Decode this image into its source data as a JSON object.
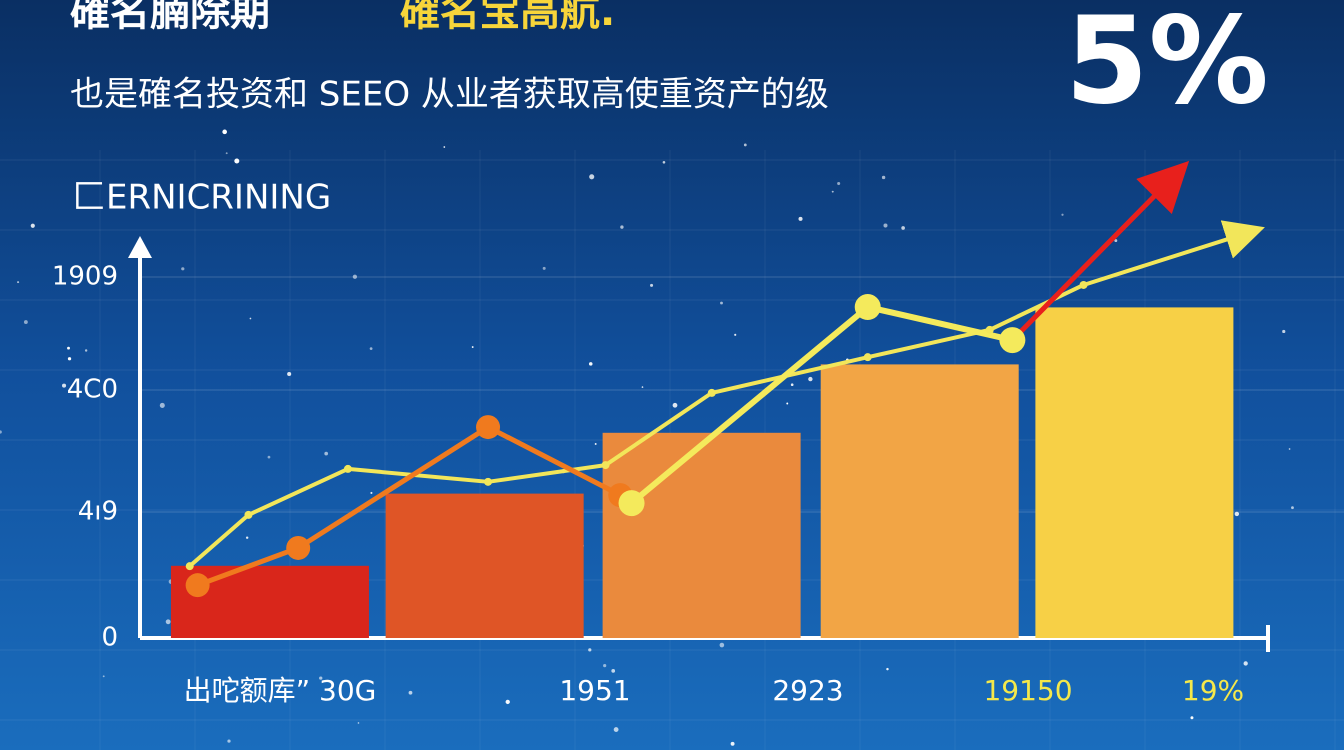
{
  "chart_data": {
    "type": "combo",
    "title": "確名腩除期",
    "title_highlight": "確名宝高航.",
    "subtitle": "也是確名投资和 SEEO 从业者获取高使重资产的级",
    "big_number": "5%",
    "axis_title": "匚ERNICRINING",
    "y_axis_labels": [
      "1909",
      "4C0",
      "4ı9",
      "0"
    ],
    "x_axis_labels": [
      "出咜额库” 30G",
      "1951",
      "2923",
      "19150",
      "19%"
    ],
    "xlim": [
      0,
      100
    ],
    "ylim": [
      0,
      125
    ],
    "bars": {
      "x": [
        11.5,
        30.5,
        49.7,
        69,
        88
      ],
      "values": [
        19,
        38,
        54,
        72,
        87
      ],
      "colors": [
        "#d9261b",
        "#df5526",
        "#ea8a3d",
        "#f2a545",
        "#f7d046"
      ]
    },
    "series": [
      {
        "color": "#f2e65a",
        "x": [
          4.4,
          9.6,
          18.4,
          30.8,
          41.2,
          50.6,
          64.4,
          75.2,
          83.5,
          98.2
        ],
        "values": [
          18.9,
          32.4,
          44.5,
          41.1,
          45.5,
          64.5,
          73.9,
          81.1,
          92.9,
          106.8
        ]
      },
      {
        "color": "#f07a1e",
        "x": [
          5.1,
          14,
          30.8,
          42.5
        ],
        "values": [
          13.9,
          23.7,
          55.5,
          37.6
        ]
      },
      {
        "color": "#f4ea5c",
        "x": [
          43.5,
          64.4,
          77.2
        ],
        "values": [
          35.5,
          87.1,
          78.4
        ]
      },
      {
        "color": "#e8201c",
        "x": [
          77.2,
          91.6
        ],
        "values": [
          78.4,
          121.8
        ]
      }
    ]
  }
}
